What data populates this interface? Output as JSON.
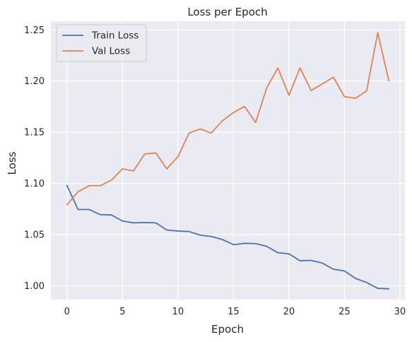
{
  "chart_data": {
    "type": "line",
    "title": "Loss per Epoch",
    "xlabel": "Epoch",
    "ylabel": "Loss",
    "xlim": [
      -1.45,
      30.45
    ],
    "ylim": [
      0.9865,
      1.2585
    ],
    "x_ticks": [
      0,
      5,
      10,
      15,
      20,
      25,
      30
    ],
    "y_ticks": [
      1.0,
      1.05,
      1.1,
      1.15,
      1.2,
      1.25
    ],
    "y_tick_labels": [
      "1.00",
      "1.05",
      "1.10",
      "1.15",
      "1.20",
      "1.25"
    ],
    "grid": true,
    "legend_position": "top-left",
    "x": [
      0,
      1,
      2,
      3,
      4,
      5,
      6,
      7,
      8,
      9,
      10,
      11,
      12,
      13,
      14,
      15,
      16,
      17,
      18,
      19,
      20,
      21,
      22,
      23,
      24,
      25,
      26,
      27,
      28,
      29
    ],
    "series": [
      {
        "name": "Train Loss",
        "color": "#4c72b0",
        "values": [
          1.098,
          1.0745,
          1.0745,
          1.0695,
          1.0692,
          1.0633,
          1.0615,
          1.0618,
          1.0615,
          1.0545,
          1.0535,
          1.053,
          1.0495,
          1.0482,
          1.0452,
          1.0402,
          1.0415,
          1.0412,
          1.0385,
          1.0323,
          1.0312,
          1.0245,
          1.0248,
          1.0222,
          1.0162,
          1.0145,
          1.0072,
          1.0032,
          0.9975,
          0.997
        ]
      },
      {
        "name": "Val Loss",
        "color": "#dd8452",
        "values": [
          1.0792,
          1.0918,
          1.0978,
          1.0978,
          1.1032,
          1.1142,
          1.1122,
          1.1288,
          1.1298,
          1.1142,
          1.1262,
          1.1492,
          1.1532,
          1.1492,
          1.1612,
          1.1692,
          1.1752,
          1.1595,
          1.1935,
          1.2128,
          1.1862,
          1.2128,
          1.1908,
          1.1972,
          1.2038,
          1.1848,
          1.1832,
          1.1905,
          1.2472,
          1.2002
        ]
      }
    ]
  }
}
